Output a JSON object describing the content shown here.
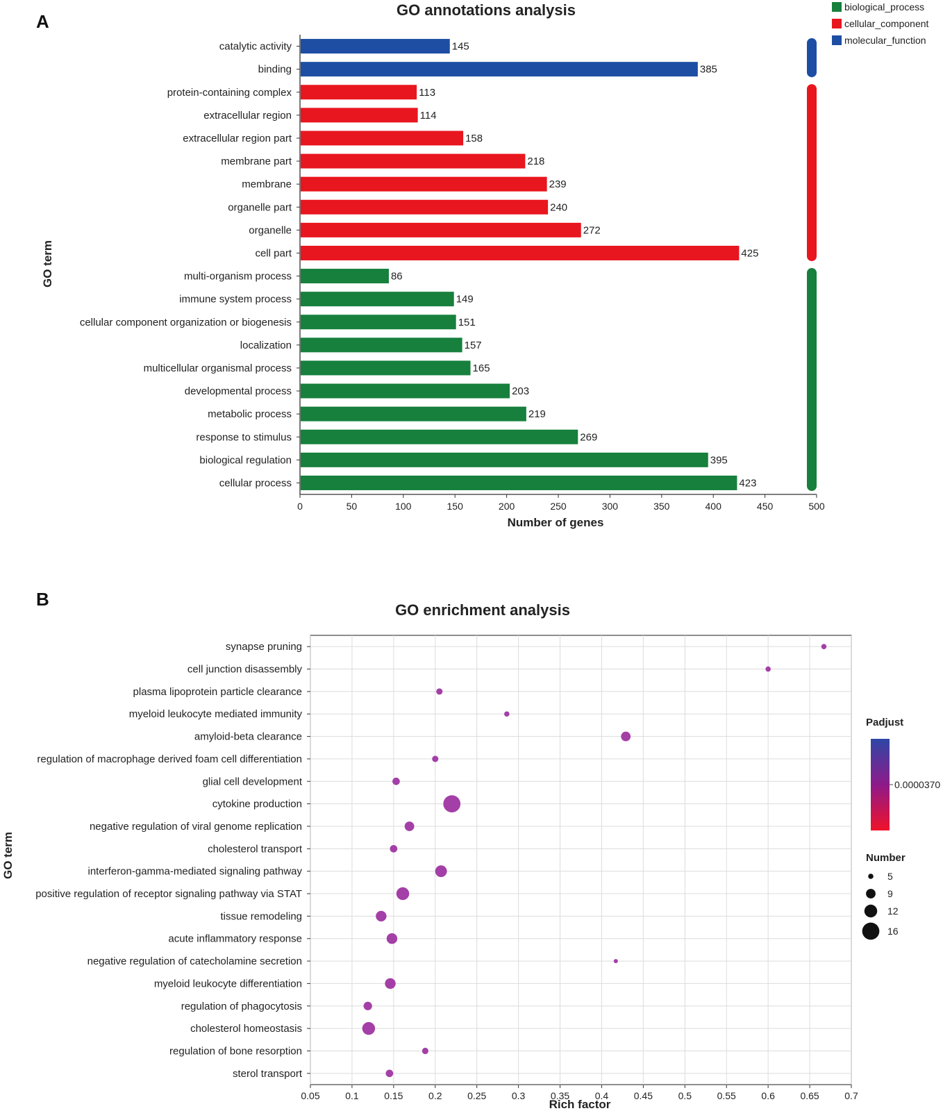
{
  "chart_data": [
    {
      "type": "bar",
      "panel_label": "A",
      "title": "GO annotations analysis",
      "xlabel": "Number of genes",
      "ylabel": "GO term",
      "xlim": [
        0,
        500
      ],
      "xticks": [
        0,
        50,
        100,
        150,
        200,
        250,
        300,
        350,
        400,
        450,
        500
      ],
      "legend": [
        {
          "name": "biological_process",
          "color": "#16803c"
        },
        {
          "name": "cellular_component",
          "color": "#e8161e"
        },
        {
          "name": "molecular_function",
          "color": "#1d4ea3"
        }
      ],
      "categories": [
        "catalytic activity",
        "binding",
        "protein-containing complex",
        "extracellular region",
        "extracellular region part",
        "membrane part",
        "membrane",
        "organelle part",
        "organelle",
        "cell part",
        "multi-organism process",
        "immune system process",
        "cellular component organization or biogenesis",
        "localization",
        "multicellular organismal process",
        "developmental process",
        "metabolic process",
        "response to stimulus",
        "biological regulation",
        "cellular process"
      ],
      "values": [
        145,
        385,
        113,
        114,
        158,
        218,
        239,
        240,
        272,
        425,
        86,
        149,
        151,
        157,
        165,
        203,
        219,
        269,
        395,
        423
      ],
      "groups": [
        "molecular_function",
        "molecular_function",
        "cellular_component",
        "cellular_component",
        "cellular_component",
        "cellular_component",
        "cellular_component",
        "cellular_component",
        "cellular_component",
        "cellular_component",
        "biological_process",
        "biological_process",
        "biological_process",
        "biological_process",
        "biological_process",
        "biological_process",
        "biological_process",
        "biological_process",
        "biological_process",
        "biological_process"
      ]
    },
    {
      "type": "scatter",
      "panel_label": "B",
      "title": "GO enrichment analysis",
      "xlabel": "Rich factor",
      "ylabel": "GO term",
      "xlim": [
        0.05,
        0.7
      ],
      "xticks": [
        0.05,
        0.1,
        0.15,
        0.2,
        0.25,
        0.3,
        0.35,
        0.4,
        0.45,
        0.5,
        0.55,
        0.6,
        0.65,
        0.7
      ],
      "color_legend": {
        "title": "Padjust",
        "label": "0.0000370",
        "colors": [
          "#2e47a6",
          "#8e1a8a",
          "#f0122a"
        ]
      },
      "size_legend": {
        "title": "Number",
        "values": [
          5,
          9,
          12,
          16
        ]
      },
      "point_color": "#a33fa6",
      "categories": [
        "synapse pruning",
        "cell junction disassembly",
        "plasma lipoprotein particle clearance",
        "myeloid leukocyte mediated immunity",
        "amyloid-beta clearance",
        "regulation of macrophage derived foam cell differentiation",
        "glial cell development",
        "cytokine production",
        "negative regulation of viral genome replication",
        "cholesterol transport",
        "interferon-gamma-mediated signaling pathway",
        "positive regulation of receptor signaling pathway via STAT",
        "tissue remodeling",
        "acute inflammatory response",
        "negative regulation of catecholamine secretion",
        "myeloid leukocyte differentiation",
        "regulation of phagocytosis",
        "cholesterol homeostasis",
        "regulation of bone resorption",
        "sterol transport"
      ],
      "x": [
        0.667,
        0.6,
        0.205,
        0.286,
        0.429,
        0.2,
        0.153,
        0.22,
        0.169,
        0.15,
        0.207,
        0.161,
        0.135,
        0.148,
        0.417,
        0.146,
        0.119,
        0.12,
        0.188,
        0.145
      ],
      "number": [
        5,
        5,
        6,
        5,
        9,
        6,
        7,
        16,
        9,
        7,
        11,
        12,
        10,
        10,
        4,
        10,
        8,
        12,
        6,
        7
      ]
    }
  ]
}
